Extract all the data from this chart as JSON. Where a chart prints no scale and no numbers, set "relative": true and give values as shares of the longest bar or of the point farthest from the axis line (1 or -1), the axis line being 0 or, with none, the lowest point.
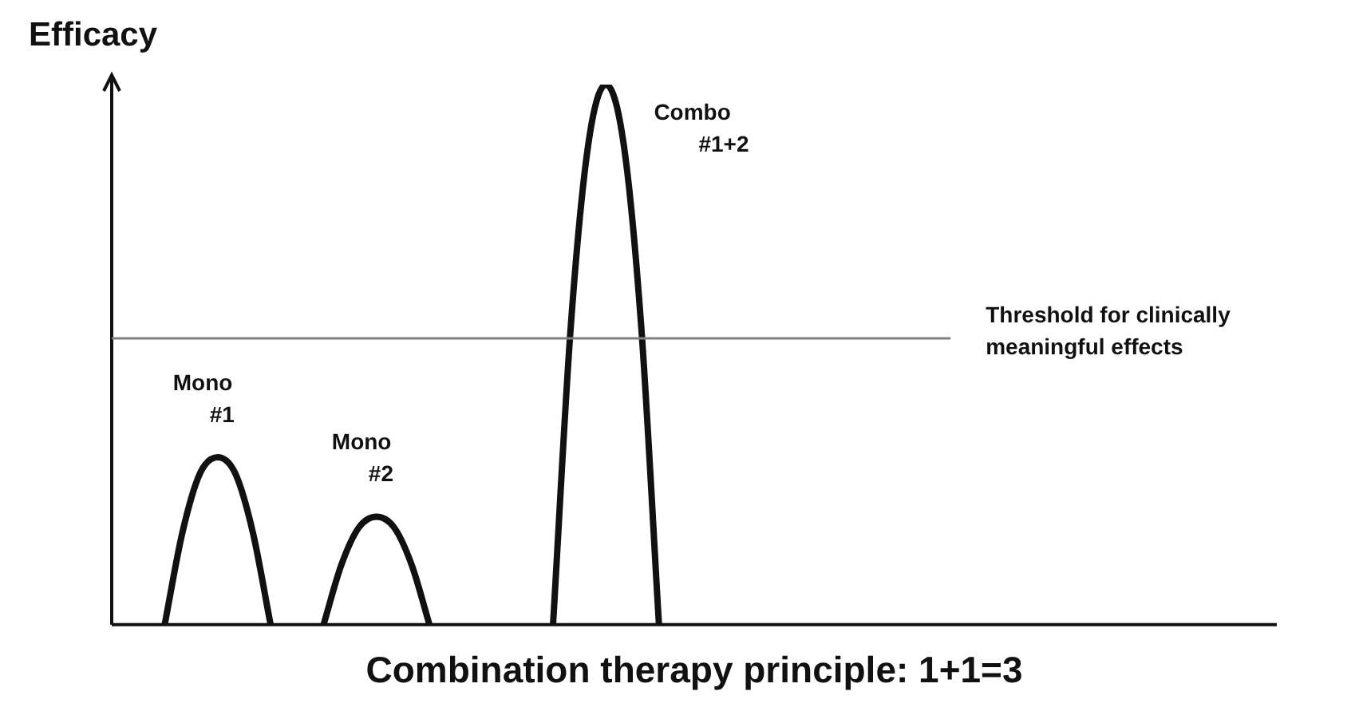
{
  "chart_data": {
    "type": "line",
    "relative": true,
    "title": "Combination therapy principle: 1+1=3",
    "ylabel": "Efficacy",
    "legend": false,
    "marker": "none",
    "categories": [
      null,
      null,
      null,
      null,
      null,
      null,
      null,
      null,
      null,
      null,
      null,
      null,
      null,
      null,
      null,
      null,
      null,
      null,
      null,
      null,
      null,
      null,
      null,
      null,
      null,
      null,
      null,
      null,
      null,
      null,
      null,
      null,
      null,
      null,
      null,
      null,
      null,
      null,
      null,
      null,
      null,
      null,
      null,
      null,
      null,
      null,
      null,
      null,
      null,
      null,
      null,
      null,
      null,
      null,
      null,
      null,
      null,
      null,
      null,
      null,
      null,
      null,
      null,
      null,
      null,
      null,
      null
    ],
    "series": [
      {
        "name": "Mono #1",
        "color": "#111111",
        "values": [
          null,
          null,
          null,
          0,
          0.17,
          0.28,
          0.31,
          0.28,
          0.17,
          0,
          null,
          null,
          null,
          null,
          null,
          null,
          null,
          null,
          null,
          null,
          null,
          null,
          null,
          null,
          null,
          null,
          null,
          null,
          null,
          null,
          null,
          null,
          null,
          null,
          null,
          null,
          null,
          null,
          null,
          null,
          null,
          null,
          null,
          null,
          null,
          null,
          null,
          null,
          null,
          null,
          null,
          null,
          null,
          null,
          null,
          null,
          null,
          null,
          null,
          null,
          null,
          null,
          null,
          null,
          null,
          null,
          null
        ]
      },
      {
        "name": "Mono #2",
        "color": "#111111",
        "values": [
          null,
          null,
          null,
          null,
          null,
          null,
          null,
          null,
          null,
          null,
          null,
          null,
          0,
          0.11,
          0.18,
          0.2,
          0.18,
          0.11,
          0,
          null,
          null,
          null,
          null,
          null,
          null,
          null,
          null,
          null,
          null,
          null,
          null,
          null,
          null,
          null,
          null,
          null,
          null,
          null,
          null,
          null,
          null,
          null,
          null,
          null,
          null,
          null,
          null,
          null,
          null,
          null,
          null,
          null,
          null,
          null,
          null,
          null,
          null,
          null,
          null,
          null,
          null,
          null,
          null,
          null,
          null,
          null,
          null
        ]
      },
      {
        "name": "Combo #1+2",
        "color": "#111111",
        "values": [
          null,
          null,
          null,
          null,
          null,
          null,
          null,
          null,
          null,
          null,
          null,
          null,
          null,
          null,
          null,
          null,
          null,
          null,
          null,
          null,
          null,
          null,
          null,
          null,
          null,
          0,
          0.55,
          0.89,
          1,
          0.89,
          0.55,
          0,
          null,
          null,
          null,
          null,
          null,
          null,
          null,
          null,
          null,
          null,
          null,
          null,
          null,
          null,
          null,
          null,
          null,
          null,
          null,
          null,
          null,
          null,
          null,
          null,
          null,
          null,
          null,
          null,
          null,
          null,
          null,
          null,
          null,
          null,
          null
        ]
      }
    ],
    "ref_lines": [
      {
        "axis": "y",
        "value": 0.53,
        "label": "Threshold for clinically meaningful effects",
        "color": "#808080"
      }
    ]
  }
}
